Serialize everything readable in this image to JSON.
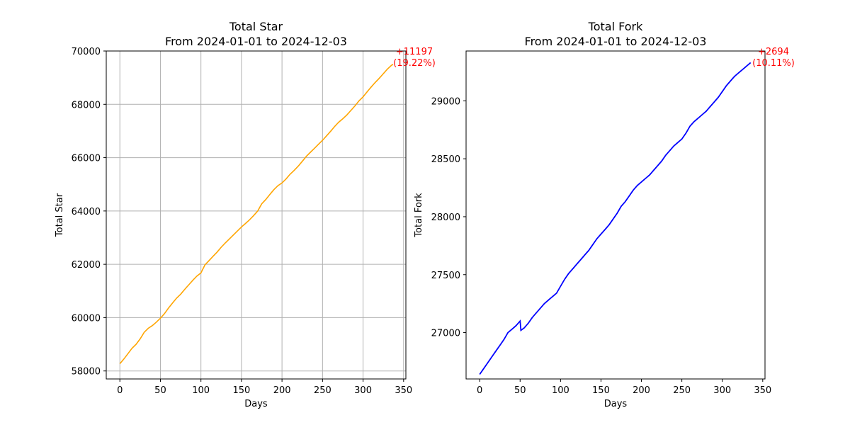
{
  "chart_data": [
    {
      "type": "line",
      "title_line1": "Total Star",
      "title_line2": "From 2024-01-01 to 2024-12-03",
      "xlabel": "Days",
      "ylabel": "Total Star",
      "xlim": [
        -16.8,
        352.8
      ],
      "ylim": [
        57700,
        70000
      ],
      "xticks": [
        0,
        50,
        100,
        150,
        200,
        250,
        300,
        350
      ],
      "yticks": [
        58000,
        60000,
        62000,
        64000,
        66000,
        68000,
        70000
      ],
      "grid": true,
      "line_color": "#ffa500",
      "annotation_color": "#ff0000",
      "annotation_line1": "+11197",
      "annotation_line2": "(19.22%)",
      "series": [
        {
          "x": [
            0,
            5,
            10,
            15,
            20,
            25,
            30,
            35,
            40,
            45,
            50,
            55,
            60,
            65,
            70,
            75,
            80,
            85,
            90,
            95,
            100,
            105,
            110,
            115,
            120,
            125,
            130,
            135,
            140,
            145,
            150,
            155,
            160,
            165,
            170,
            175,
            180,
            185,
            190,
            195,
            200,
            205,
            210,
            215,
            220,
            225,
            230,
            235,
            240,
            245,
            250,
            255,
            260,
            265,
            270,
            275,
            280,
            285,
            290,
            295,
            300,
            305,
            310,
            315,
            320,
            325,
            330,
            335,
            337
          ],
          "y": [
            58270,
            58450,
            58650,
            58850,
            59000,
            59200,
            59450,
            59600,
            59700,
            59830,
            59980,
            60150,
            60360,
            60550,
            60730,
            60880,
            61060,
            61230,
            61400,
            61560,
            61680,
            61980,
            62140,
            62300,
            62460,
            62640,
            62800,
            62950,
            63100,
            63250,
            63400,
            63530,
            63670,
            63830,
            64000,
            64270,
            64430,
            64620,
            64800,
            64950,
            65050,
            65200,
            65380,
            65520,
            65680,
            65860,
            66050,
            66200,
            66350,
            66500,
            66650,
            66820,
            66990,
            67170,
            67330,
            67460,
            67600,
            67770,
            67940,
            68130,
            68280,
            68470,
            68650,
            68820,
            68980,
            69150,
            69320,
            69460,
            69500
          ]
        }
      ]
    },
    {
      "type": "line",
      "title_line1": "Total Fork",
      "title_line2": "From 2024-01-01 to 2024-12-03",
      "xlabel": "Days",
      "ylabel": "Total Fork",
      "xlim": [
        -16.8,
        352.8
      ],
      "ylim": [
        26600,
        29430
      ],
      "xticks": [
        0,
        50,
        100,
        150,
        200,
        250,
        300,
        350
      ],
      "yticks": [
        27000,
        27500,
        28000,
        28500,
        29000
      ],
      "grid": false,
      "line_color": "#0000ff",
      "annotation_color": "#ff0000",
      "annotation_line1": "+2694",
      "annotation_line2": "(10.11%)",
      "series": [
        {
          "x": [
            0,
            5,
            10,
            15,
            20,
            25,
            30,
            35,
            40,
            45,
            50,
            51,
            55,
            60,
            65,
            70,
            75,
            80,
            85,
            90,
            95,
            100,
            105,
            110,
            115,
            120,
            125,
            130,
            135,
            140,
            145,
            150,
            155,
            160,
            165,
            170,
            175,
            180,
            185,
            190,
            195,
            200,
            205,
            210,
            215,
            220,
            225,
            230,
            235,
            240,
            245,
            250,
            255,
            260,
            265,
            270,
            275,
            280,
            285,
            290,
            295,
            300,
            305,
            310,
            315,
            320,
            325,
            330,
            335
          ],
          "y": [
            26640,
            26690,
            26740,
            26790,
            26840,
            26890,
            26940,
            27000,
            27030,
            27060,
            27100,
            27020,
            27040,
            27080,
            27130,
            27170,
            27210,
            27250,
            27280,
            27310,
            27340,
            27400,
            27460,
            27510,
            27550,
            27590,
            27630,
            27670,
            27710,
            27760,
            27810,
            27850,
            27890,
            27930,
            27980,
            28030,
            28090,
            28130,
            28180,
            28230,
            28270,
            28300,
            28330,
            28360,
            28400,
            28440,
            28480,
            28530,
            28570,
            28610,
            28640,
            28670,
            28720,
            28780,
            28820,
            28850,
            28880,
            28910,
            28950,
            28990,
            29030,
            29080,
            29130,
            29170,
            29210,
            29240,
            29270,
            29300,
            29330
          ]
        }
      ]
    }
  ]
}
